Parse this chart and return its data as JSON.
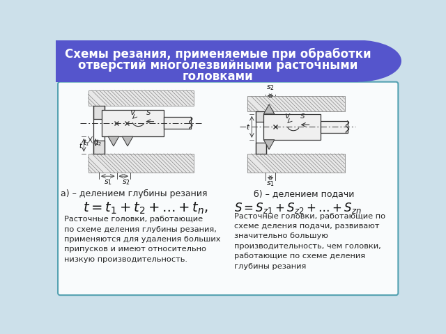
{
  "title_line1": "Схемы резания, применяемые при обработки",
  "title_line2": "отверстий многолезвийными расточными",
  "title_line3": "головками",
  "header_color": "#5555cc",
  "header_text_color": "#ffffff",
  "bg_color": "#cce0ea",
  "border_color": "#4499aa",
  "label_a": "а) – делением глубины резания",
  "label_b": "б) – делением подачи",
  "formula_a": "$t = t_1 + t_2 + \\ldots + t_n,$",
  "formula_b": "$S = S_{z1} + S_{z2} + \\ldots +S_{zn}$",
  "text_a": "Расточные головки, работающие\nпо схеме деления глубины резания,\nприменяются для удаления больших\nприпусков и имеют относительно\nнизкую производительность.",
  "text_b": "Расточные головки, работающие по\nсхеме деления подачи, развивают\nзначительно большую\nпроизводительность, чем головки,\nработающие по схеме деления\nглубины резания"
}
